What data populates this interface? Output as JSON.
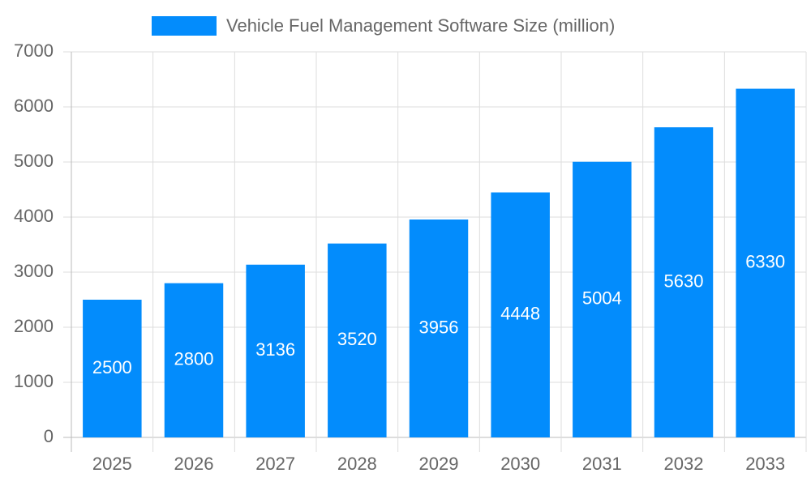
{
  "chart_data": {
    "type": "bar",
    "categories": [
      "2025",
      "2026",
      "2027",
      "2028",
      "2029",
      "2030",
      "2031",
      "2032",
      "2033"
    ],
    "series": [
      {
        "name": "Vehicle Fuel Management Software Size (million)",
        "color": "#038cfc",
        "values": [
          2500,
          2800,
          3136,
          3520,
          3956,
          4448,
          5004,
          5630,
          6330
        ]
      }
    ],
    "ylim": [
      0,
      7000
    ],
    "yticks": [
      0,
      1000,
      2000,
      3000,
      4000,
      5000,
      6000,
      7000
    ],
    "grid": true,
    "legend": "top"
  }
}
